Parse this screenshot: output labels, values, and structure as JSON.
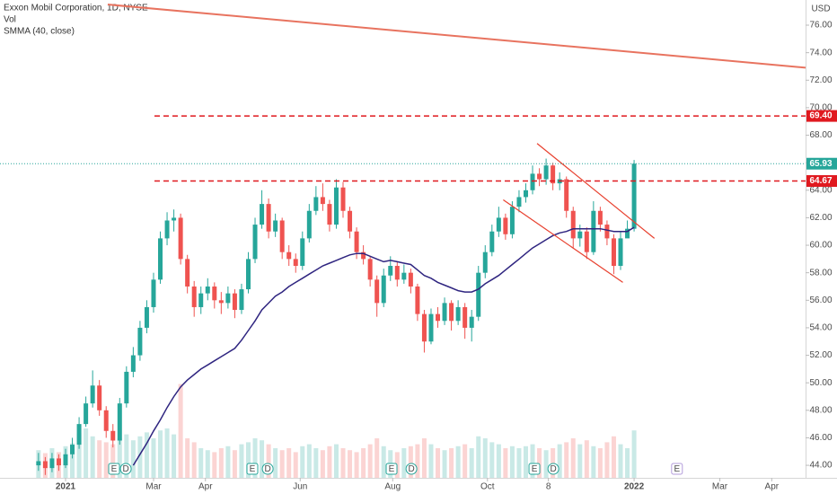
{
  "chart_data": {
    "type": "candlestick",
    "title": "Exxon Mobil Corporation, 1D, NYSE",
    "currency": "USD",
    "volume_name": "Vol",
    "up_color": "#26a69a",
    "down_color": "#ef5350",
    "x": [
      -12,
      -9,
      -6,
      -3,
      0,
      3,
      6,
      9,
      12,
      15,
      18,
      21,
      24,
      27,
      30,
      33,
      36,
      39,
      42,
      45,
      48,
      51,
      54,
      57,
      60,
      63,
      66,
      69,
      72,
      75,
      78,
      81,
      84,
      87,
      90,
      93,
      96,
      99,
      102,
      105,
      108,
      111,
      114,
      117,
      120,
      123,
      126,
      129,
      132,
      135,
      138,
      141,
      144,
      147,
      150,
      153,
      156,
      159,
      162,
      165,
      168,
      171,
      174,
      177,
      180,
      183,
      186,
      189,
      192,
      195,
      198,
      201,
      204,
      207,
      210,
      213,
      216,
      219,
      222,
      225,
      228,
      231,
      234,
      237,
      240,
      243,
      246,
      249,
      252
    ],
    "open": [
      44.0,
      44.3,
      43.8,
      44.5,
      44.0,
      44.8,
      45.5,
      47.0,
      48.5,
      49.8,
      48.0,
      46.5,
      45.8,
      48.5,
      50.8,
      52.0,
      54.0,
      55.5,
      57.5,
      60.5,
      61.8,
      62.0,
      59.0,
      57.0,
      55.5,
      56.5,
      57.0,
      56.0,
      55.8,
      56.5,
      55.3,
      56.8,
      59.0,
      61.5,
      63.0,
      61.0,
      61.8,
      59.5,
      59.0,
      58.5,
      60.5,
      62.5,
      63.5,
      63.0,
      61.5,
      64.2,
      62.5,
      61.0,
      59.5,
      59.0,
      57.5,
      55.8,
      57.8,
      58.5,
      57.5,
      58.0,
      57.0,
      55.0,
      53.0,
      55.0,
      54.5,
      55.8,
      54.5,
      55.5,
      54.0,
      54.8,
      58.0,
      59.5,
      61.0,
      62.0,
      60.8,
      62.8,
      63.5,
      64.0,
      65.2,
      64.8,
      65.8,
      64.5,
      64.8,
      62.5,
      60.5,
      61.0,
      59.5,
      62.5,
      61.5,
      60.5,
      58.5,
      60.5,
      61.2
    ],
    "high": [
      44.9,
      44.6,
      44.9,
      44.8,
      45.2,
      46.0,
      47.5,
      49.0,
      50.9,
      50.2,
      48.3,
      47.0,
      48.9,
      51.2,
      52.6,
      54.5,
      56.0,
      58.0,
      61.0,
      62.4,
      62.6,
      62.3,
      59.3,
      57.4,
      57.0,
      57.6,
      57.3,
      56.6,
      57.0,
      56.8,
      57.2,
      59.5,
      62.0,
      64.0,
      63.4,
      62.3,
      62.0,
      60.0,
      59.4,
      61.0,
      63.0,
      64.3,
      64.5,
      63.3,
      64.8,
      64.6,
      62.8,
      61.3,
      60.0,
      59.2,
      57.8,
      58.3,
      59.2,
      58.8,
      58.6,
      58.3,
      57.2,
      55.3,
      55.4,
      55.5,
      56.2,
      56.0,
      56.0,
      55.8,
      55.3,
      58.5,
      60.0,
      61.5,
      62.8,
      62.3,
      63.2,
      64.0,
      64.5,
      65.8,
      65.6,
      66.3,
      66.0,
      65.3,
      65.0,
      62.8,
      61.5,
      61.3,
      63.2,
      62.8,
      61.8,
      60.8,
      61.0,
      61.8,
      66.2
    ],
    "low": [
      43.6,
      43.3,
      43.5,
      43.6,
      43.8,
      44.5,
      45.2,
      46.8,
      48.2,
      47.6,
      46.0,
      45.3,
      45.5,
      48.2,
      50.4,
      51.6,
      53.6,
      55.1,
      57.2,
      60.0,
      61.0,
      58.6,
      56.5,
      54.8,
      55.0,
      56.0,
      55.4,
      55.0,
      55.4,
      54.7,
      55.0,
      56.5,
      58.7,
      61.2,
      60.5,
      60.6,
      59.0,
      58.5,
      58.0,
      58.2,
      60.2,
      62.2,
      62.5,
      61.0,
      61.2,
      62.0,
      60.5,
      59.0,
      58.6,
      57.0,
      54.8,
      55.5,
      57.4,
      57.0,
      57.2,
      56.5,
      54.5,
      52.2,
      52.8,
      54.0,
      54.2,
      53.8,
      54.2,
      53.2,
      53.0,
      54.5,
      57.6,
      59.2,
      60.6,
      60.4,
      60.5,
      62.4,
      63.1,
      63.7,
      64.3,
      64.4,
      64.0,
      64.0,
      62.0,
      59.8,
      59.9,
      59.0,
      59.3,
      61.0,
      60.0,
      57.9,
      58.2,
      60.6,
      61.0
    ],
    "close": [
      44.3,
      43.8,
      44.5,
      44.0,
      44.8,
      45.5,
      47.0,
      48.5,
      49.8,
      48.0,
      46.5,
      45.8,
      48.5,
      50.8,
      52.0,
      54.0,
      55.5,
      57.5,
      60.5,
      61.8,
      62.0,
      59.0,
      57.0,
      55.5,
      56.5,
      57.0,
      56.0,
      55.8,
      56.5,
      55.3,
      56.8,
      59.0,
      61.5,
      63.0,
      61.0,
      61.8,
      59.5,
      59.0,
      58.5,
      60.5,
      62.5,
      63.5,
      63.0,
      61.5,
      64.2,
      62.5,
      61.0,
      59.5,
      59.0,
      57.5,
      55.8,
      57.8,
      58.5,
      57.5,
      58.0,
      57.0,
      55.0,
      53.0,
      55.0,
      54.5,
      55.8,
      54.5,
      55.5,
      54.0,
      54.8,
      58.0,
      59.5,
      61.0,
      62.0,
      60.8,
      62.8,
      63.5,
      64.0,
      65.2,
      64.8,
      65.8,
      64.5,
      64.8,
      62.5,
      60.5,
      61.0,
      59.5,
      62.5,
      61.5,
      60.5,
      58.5,
      60.5,
      61.2,
      65.93
    ],
    "volume": [
      28,
      25,
      30,
      26,
      32,
      35,
      45,
      50,
      42,
      38,
      36,
      34,
      40,
      44,
      38,
      42,
      46,
      40,
      48,
      50,
      44,
      95,
      40,
      36,
      30,
      28,
      26,
      30,
      32,
      28,
      34,
      36,
      40,
      38,
      34,
      30,
      28,
      30,
      26,
      32,
      34,
      30,
      28,
      32,
      34,
      30,
      28,
      26,
      30,
      34,
      40,
      32,
      28,
      26,
      30,
      32,
      34,
      40,
      34,
      30,
      28,
      30,
      32,
      34,
      30,
      42,
      40,
      36,
      34,
      30,
      32,
      30,
      32,
      34,
      30,
      28,
      30,
      34,
      36,
      40,
      34,
      38,
      32,
      30,
      36,
      42,
      34,
      30,
      48
    ],
    "smma": {
      "name": "SMMA (40, close)",
      "color": "#2f2580",
      "values": [
        null,
        null,
        null,
        null,
        null,
        null,
        null,
        null,
        null,
        null,
        null,
        null,
        null,
        null,
        44.0,
        44.8,
        45.6,
        46.5,
        47.3,
        48.2,
        49.0,
        49.7,
        50.2,
        50.6,
        51.0,
        51.3,
        51.6,
        51.9,
        52.2,
        52.5,
        53.1,
        53.8,
        54.5,
        55.3,
        55.8,
        56.3,
        56.6,
        57.0,
        57.3,
        57.6,
        57.9,
        58.2,
        58.5,
        58.7,
        58.9,
        59.1,
        59.3,
        59.4,
        59.4,
        59.2,
        59.0,
        58.8,
        58.9,
        58.8,
        58.7,
        58.6,
        58.2,
        57.8,
        57.6,
        57.3,
        57.1,
        56.9,
        56.7,
        56.6,
        56.6,
        56.8,
        57.2,
        57.5,
        57.8,
        58.2,
        58.6,
        59.0,
        59.4,
        59.8,
        60.1,
        60.4,
        60.7,
        60.9,
        61.0,
        61.2,
        61.2,
        61.2,
        61.2,
        61.2,
        61.1,
        61.0,
        61.0,
        61.0,
        61.3
      ]
    },
    "xlim": [
      -29.06,
      328.0
    ],
    "ylim": [
      43.09,
      77.83
    ],
    "xticks": [
      {
        "value": 0,
        "label": "2021"
      },
      {
        "value": 39,
        "label": "Mar"
      },
      {
        "value": 62,
        "label": "Apr"
      },
      {
        "value": 104,
        "label": "Jun"
      },
      {
        "value": 145,
        "label": "Aug"
      },
      {
        "value": 187,
        "label": "Oct"
      },
      {
        "value": 214,
        "label": "8"
      },
      {
        "value": 252,
        "label": "2022"
      },
      {
        "value": 290,
        "label": "Mar"
      },
      {
        "value": 313,
        "label": "Apr"
      }
    ],
    "yticks": [
      {
        "value": 44,
        "label": "44.00"
      },
      {
        "value": 46,
        "label": "46.00"
      },
      {
        "value": 48,
        "label": "48.00"
      },
      {
        "value": 50,
        "label": "50.00"
      },
      {
        "value": 52,
        "label": "52.00"
      },
      {
        "value": 54,
        "label": "54.00"
      },
      {
        "value": 56,
        "label": "56.00"
      },
      {
        "value": 58,
        "label": "58.00"
      },
      {
        "value": 60,
        "label": "60.00"
      },
      {
        "value": 62,
        "label": "62.00"
      },
      {
        "value": 64,
        "label": "64.00"
      },
      {
        "value": 66,
        "label": "66.00"
      },
      {
        "value": 68,
        "label": "68.00"
      },
      {
        "value": 70,
        "label": "70.00"
      },
      {
        "value": 72,
        "label": "72.00"
      },
      {
        "value": 74,
        "label": "74.00"
      },
      {
        "value": 76,
        "label": "76.00"
      }
    ],
    "price_lines": [
      {
        "value": 69.4,
        "label": "69.40",
        "color": "#e0191f"
      },
      {
        "value": 64.67,
        "label": "64.67",
        "color": "#e0191f"
      }
    ],
    "price_line_start": 39.4,
    "trendlines": [
      {
        "x": [
          18.7,
          342.0
        ],
        "y": [
          77.5,
          72.7
        ],
        "color": "#e8735f"
      },
      {
        "x": [
          209.0,
          261.0
        ],
        "y": [
          67.4,
          60.5
        ],
        "color": "#e8412f"
      },
      {
        "x": [
          194.0,
          247.0
        ],
        "y": [
          63.3,
          57.3
        ],
        "color": "#e8412f"
      }
    ],
    "events": [
      {
        "x": 21.5,
        "label": "E"
      },
      {
        "x": 26.7,
        "label": "D"
      },
      {
        "x": 82.8,
        "label": "E"
      },
      {
        "x": 89.6,
        "label": "D"
      },
      {
        "x": 144.5,
        "label": "E"
      },
      {
        "x": 153.3,
        "label": "D"
      },
      {
        "x": 207.8,
        "label": "E"
      },
      {
        "x": 216.2,
        "label": "D"
      },
      {
        "x": 271.0,
        "label": "E",
        "upcoming": true
      }
    ]
  }
}
